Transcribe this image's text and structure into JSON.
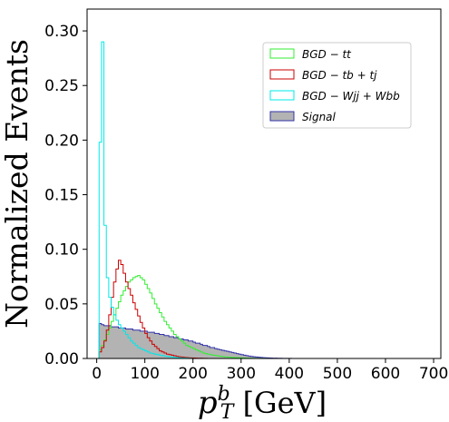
{
  "chart_data": {
    "type": "histogram",
    "xlabel": "p_T^b [GeV]",
    "xlabel_parts": {
      "base": "p",
      "sup": "b",
      "sub": "T",
      "rest": "[GeV]"
    },
    "ylabel": "Normalized Events",
    "xlim": [
      -20,
      715
    ],
    "ylim": [
      0,
      0.32
    ],
    "xticks": [
      0,
      100,
      200,
      300,
      400,
      500,
      600,
      700
    ],
    "yticks": [
      "0.00",
      "0.05",
      "0.10",
      "0.15",
      "0.20",
      "0.25",
      "0.30"
    ],
    "bin_width": 5,
    "bin_start": 0,
    "legend_position": "top-right",
    "series": [
      {
        "name": "BGD − tt",
        "name_parts": [
          "BGD",
          "−",
          "tt"
        ],
        "color": "#33ee33",
        "style": "step",
        "values": [
          0.0,
          0.008,
          0.012,
          0.017,
          0.022,
          0.028,
          0.034,
          0.04,
          0.046,
          0.052,
          0.058,
          0.062,
          0.066,
          0.07,
          0.072,
          0.074,
          0.075,
          0.076,
          0.074,
          0.072,
          0.068,
          0.064,
          0.06,
          0.055,
          0.05,
          0.046,
          0.042,
          0.038,
          0.034,
          0.031,
          0.028,
          0.025,
          0.022,
          0.02,
          0.018,
          0.016,
          0.014,
          0.012,
          0.011,
          0.01,
          0.009,
          0.008,
          0.007,
          0.006,
          0.005,
          0.0045,
          0.004,
          0.0035,
          0.003,
          0.0027,
          0.0024,
          0.0021,
          0.0018,
          0.0015,
          0.0013,
          0.0011,
          0.0009,
          0.0008,
          0.0007,
          0.0006,
          0.0005,
          0.0004,
          0.0003,
          0.0003,
          0.0002,
          0.0002,
          0.0001,
          0.0001,
          0.0001,
          0.0001,
          0.0
        ]
      },
      {
        "name": "BGD − tb + tj",
        "name_parts": [
          "BGD",
          "−",
          "tb",
          "+",
          "tj"
        ],
        "color": "#cc0000",
        "style": "step",
        "values": [
          0.0,
          0.006,
          0.01,
          0.016,
          0.026,
          0.04,
          0.056,
          0.07,
          0.082,
          0.09,
          0.086,
          0.078,
          0.07,
          0.064,
          0.058,
          0.051,
          0.045,
          0.039,
          0.033,
          0.028,
          0.023,
          0.019,
          0.016,
          0.013,
          0.011,
          0.009,
          0.007,
          0.006,
          0.005,
          0.004,
          0.0035,
          0.003,
          0.0025,
          0.002,
          0.0016,
          0.0013,
          0.001,
          0.0008,
          0.0006,
          0.0005,
          0.0004,
          0.0003,
          0.0002,
          0.0002,
          0.0001,
          0.0001,
          0.0
        ]
      },
      {
        "name": "BGD − Wjj + Wbb",
        "name_parts": [
          "BGD",
          "−",
          "Wjj",
          "+",
          "Wbb"
        ],
        "color": "#00e8e8",
        "style": "step",
        "values": [
          0.0,
          0.198,
          0.29,
          0.122,
          0.074,
          0.056,
          0.047,
          0.04,
          0.035,
          0.031,
          0.028,
          0.025,
          0.022,
          0.019,
          0.016,
          0.014,
          0.012,
          0.01,
          0.009,
          0.008,
          0.007,
          0.006,
          0.005,
          0.0045,
          0.004,
          0.0035,
          0.003,
          0.0026,
          0.0022,
          0.0019,
          0.0016,
          0.0013,
          0.001,
          0.0008,
          0.0006,
          0.0005,
          0.0004,
          0.0003,
          0.0002,
          0.0001,
          0.0
        ]
      },
      {
        "name": "Signal",
        "name_parts": [
          "Signal"
        ],
        "color": "#3333aa",
        "fill": "#b3b3b3",
        "style": "filled",
        "values": [
          0.0,
          0.032,
          0.031,
          0.03,
          0.03,
          0.03,
          0.029,
          0.029,
          0.029,
          0.028,
          0.028,
          0.028,
          0.027,
          0.027,
          0.027,
          0.026,
          0.026,
          0.026,
          0.025,
          0.025,
          0.025,
          0.024,
          0.024,
          0.024,
          0.023,
          0.023,
          0.022,
          0.022,
          0.021,
          0.021,
          0.02,
          0.02,
          0.019,
          0.019,
          0.018,
          0.018,
          0.017,
          0.017,
          0.016,
          0.016,
          0.015,
          0.014,
          0.014,
          0.013,
          0.012,
          0.012,
          0.011,
          0.01,
          0.01,
          0.009,
          0.0085,
          0.008,
          0.0075,
          0.007,
          0.0065,
          0.006,
          0.0055,
          0.005,
          0.0045,
          0.004,
          0.0035,
          0.003,
          0.0026,
          0.0022,
          0.0019,
          0.0016,
          0.0013,
          0.0011,
          0.0009,
          0.0007,
          0.0006,
          0.0005,
          0.0004,
          0.0003,
          0.0003,
          0.0002,
          0.0002,
          0.0001,
          0.0001,
          0.0001,
          0.0001,
          0.0
        ]
      }
    ]
  }
}
